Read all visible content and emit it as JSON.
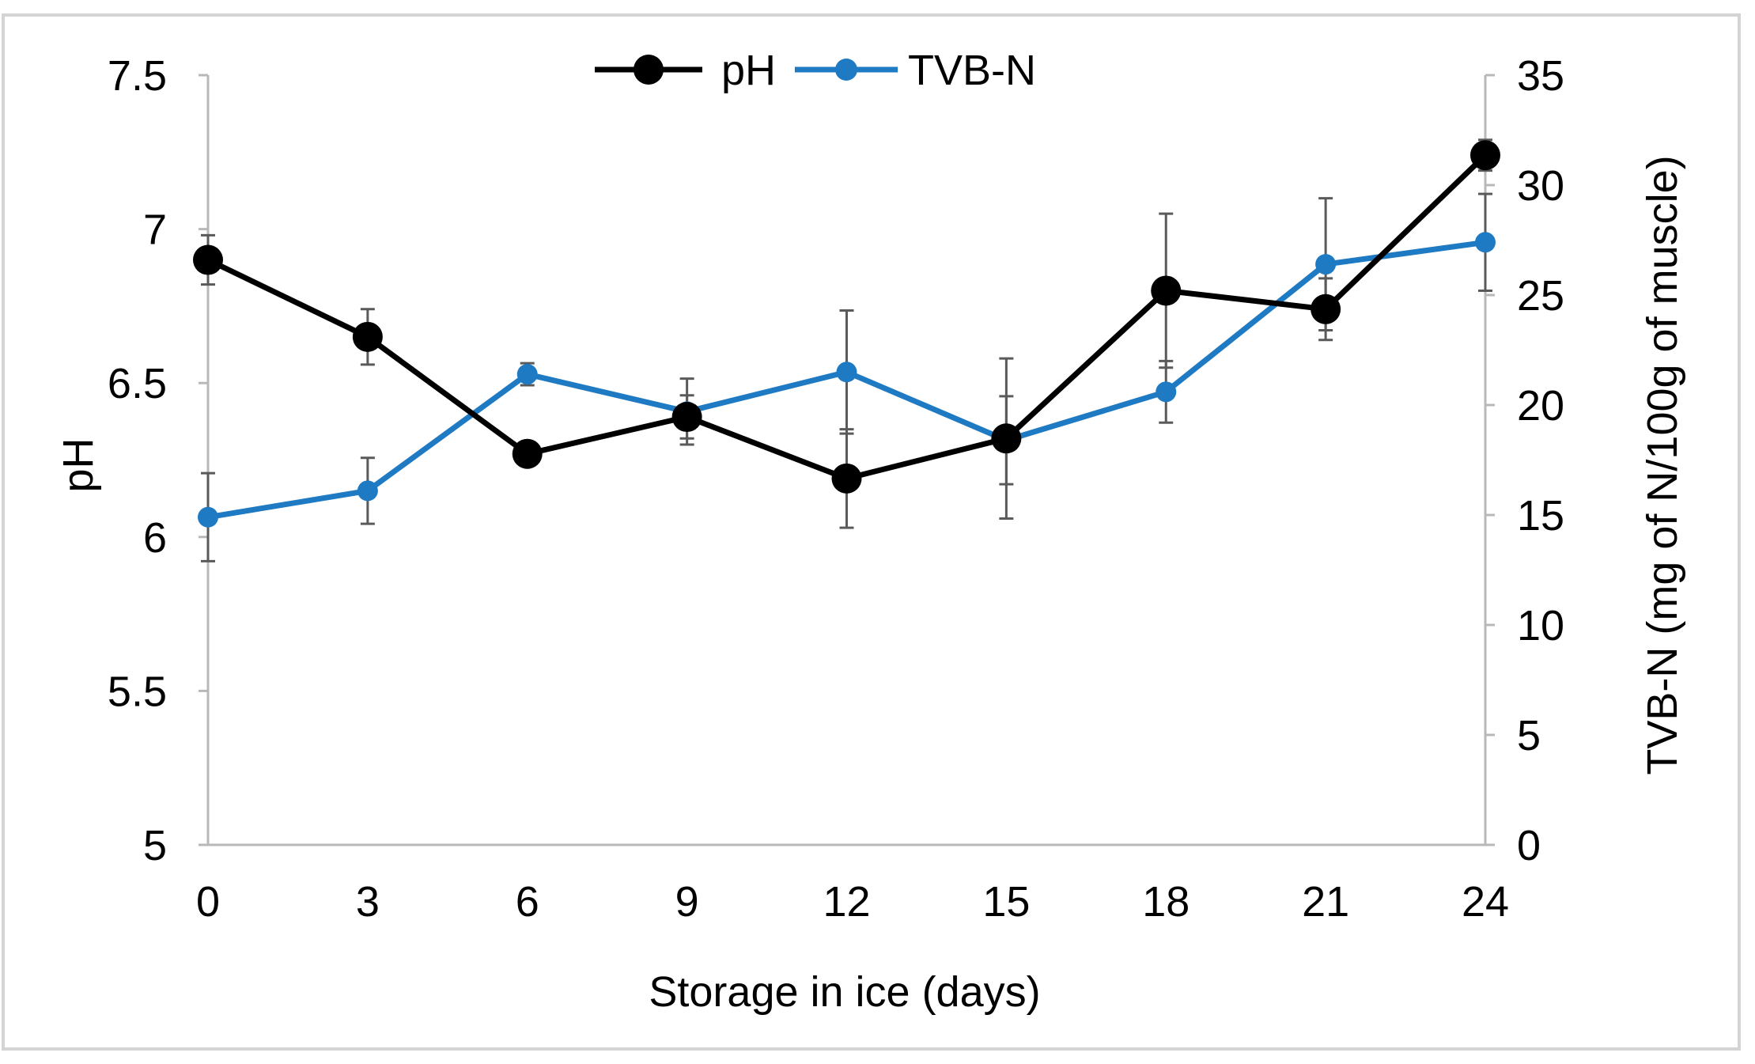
{
  "chart_data": {
    "type": "line",
    "title": "",
    "xlabel": "Storage in ice (days)",
    "ylabel": "pH",
    "y2label": "TVB-N (mg of N/100g of muscle)",
    "categories": [
      "0",
      "3",
      "6",
      "9",
      "12",
      "15",
      "18",
      "21",
      "24"
    ],
    "x_values": [
      0,
      3,
      6,
      9,
      12,
      15,
      18,
      21,
      24
    ],
    "ylim": [
      5,
      7.5
    ],
    "y_ticks": [
      5,
      5.5,
      6,
      6.5,
      7,
      7.5
    ],
    "y_tick_labels": [
      "5",
      "5.5",
      "6",
      "6.5",
      "7",
      "7.5"
    ],
    "y2lim": [
      0,
      35
    ],
    "y2_ticks": [
      0,
      5,
      10,
      15,
      20,
      25,
      30,
      35
    ],
    "y2_tick_labels": [
      "0",
      "5",
      "10",
      "15",
      "20",
      "25",
      "30",
      "35"
    ],
    "legend_position": "top-center",
    "grid": false,
    "series": [
      {
        "name": "pH",
        "axis": "left",
        "color": "#000000",
        "values": [
          6.9,
          6.65,
          6.27,
          6.39,
          6.19,
          6.32,
          6.8,
          6.74,
          7.24
        ],
        "errors": [
          0.08,
          0.09,
          0.02,
          0.07,
          0.16,
          0.26,
          0.25,
          0.1,
          0.05
        ]
      },
      {
        "name": "TVB-N",
        "axis": "right",
        "color": "#1f7ac4",
        "values": [
          14.9,
          16.1,
          21.4,
          19.7,
          21.5,
          18.4,
          20.6,
          26.4,
          27.4
        ],
        "errors": [
          2.0,
          1.5,
          0.5,
          1.5,
          2.8,
          2.0,
          1.4,
          3.0,
          2.2
        ]
      }
    ]
  }
}
